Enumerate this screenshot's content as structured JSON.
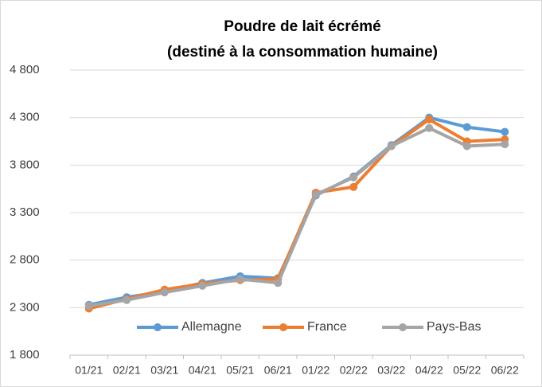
{
  "chart_data": {
    "type": "line",
    "title": "Poudre de lait écrémé",
    "subtitle": "(destiné à la consommation humaine)",
    "categories": [
      "01/21",
      "02/21",
      "03/21",
      "04/21",
      "05/21",
      "06/21",
      "01/22",
      "02/22",
      "03/22",
      "04/22",
      "05/22",
      "06/22"
    ],
    "series": [
      {
        "name": "Allemagne",
        "color": "#5b9bd5",
        "values": [
          2330,
          2410,
          2470,
          2560,
          2630,
          2610,
          3480,
          3680,
          4010,
          4300,
          4200,
          4150
        ]
      },
      {
        "name": "France",
        "color": "#ed7d31",
        "values": [
          2290,
          2390,
          2490,
          2550,
          2590,
          2600,
          3510,
          3570,
          4000,
          4280,
          4050,
          4070
        ]
      },
      {
        "name": "Pays-Bas",
        "color": "#a5a5a5",
        "values": [
          2320,
          2380,
          2460,
          2530,
          2600,
          2560,
          3490,
          3670,
          4000,
          4190,
          4000,
          4020
        ]
      }
    ],
    "ylim": [
      1800,
      4800
    ],
    "yticks": [
      {
        "value": 1800,
        "label": "1 800"
      },
      {
        "value": 2300,
        "label": "2 300"
      },
      {
        "value": 2800,
        "label": "2 800"
      },
      {
        "value": 3300,
        "label": "3 300"
      },
      {
        "value": 3800,
        "label": "3 800"
      },
      {
        "value": 4300,
        "label": "4 300"
      },
      {
        "value": 4800,
        "label": "4 800"
      }
    ],
    "grid": true,
    "legend": "bottom"
  }
}
